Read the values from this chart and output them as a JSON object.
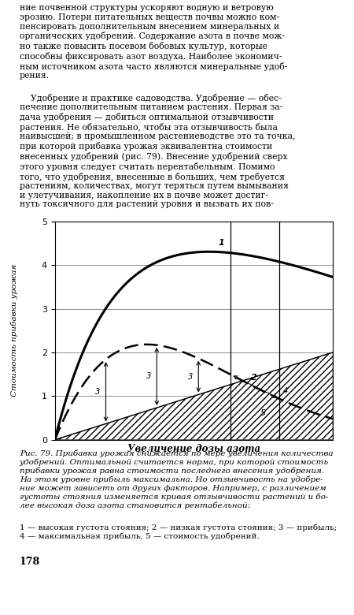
{
  "xlabel": "Увеличение дозы азота",
  "ylabel": "Стоимость прибавки урожая",
  "xlim": [
    0,
    6
  ],
  "ylim": [
    0,
    5
  ],
  "yticks": [
    0,
    1,
    2,
    3,
    4,
    5
  ],
  "opt_x1": 3.8,
  "opt_x2": 4.85,
  "text_above1": "ние почвенной структуры ускоряют водную и ветровую\nэрозию. Потери питательных веществ почвы можно ком-\nпенсировать дополнительным внесением минеральных и\nорганических удобрений. Содержание азота в почве мож-\nно также повысить посевом бобовых культур, которые\nспособны фиксировать азот воздуха. Наиболее экономич-\nным источником азота часто являются минеральные удоб-\nрения.",
  "text_above2": "    Удобрение и практике садоводства. Удобрение — обес-\nпечение дополнительным питанием растения. Первая за-\nдача удобрения — добиться оптимальной отзывчивости\nрастения. Не обязательно, чтобы эта отзывчивость была\nнаивысшей; в промышленном растениеводстве это та точка,\nпри которой прибавка урожая эквивалентна стоимости\nвнесенных удобрений (рис. 79). Внесение удобрений сверх\nэтого уровня следует считать перентабельным. Помимо\nтого, что удобрения, внесенные в больших, чем требуется\nрастениям, количествах, могут теряться путем вымывания\nи улетучивания, накопление их в почве может достиг-\nнуть токсичного для растений уровня и вызвать их пов-",
  "caption": "Рис. 79. Прибавка урожая снижается по мере увеличения количества\nудобрений. Оптимальной считается норма, при которой стоимость\nприбавки урожая равна стоимости последнего внесения удобрения.\nНа этом уровне прибыль максимальна. Но отзывчивость на удобре-\nние может зависеть от других факторов. Например, с различением\nгустоты стояния изменяется кривая отзывчивости растений и бо-\nлее высокая доза азота становится рентабельной:",
  "legend": "1 — высокая густота стояния; 2 — низкая густота стояния; 3 — прибыль;\n4 — максимальная прибыль, 5 — стоимость удобрений.",
  "page": "178"
}
